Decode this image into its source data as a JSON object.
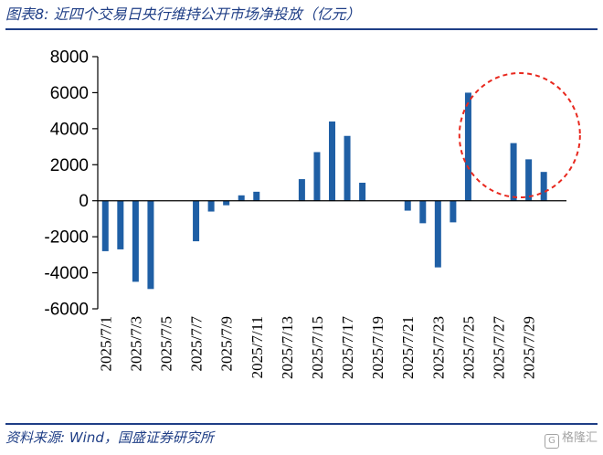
{
  "header": {
    "title": "图表8: 近四个交易日央行维持公开市场净投放（亿元）"
  },
  "footer": {
    "source": "资料来源: Wind，国盛证券研究所",
    "watermark": "格隆汇"
  },
  "colors": {
    "bar": "#1f5fa5",
    "axis": "#000000",
    "highlight": "#e8281e",
    "brand": "#1f3e86"
  },
  "chart_data": {
    "type": "bar",
    "title": "近四个交易日央行维持公开市场净投放（亿元）",
    "xlabel": "",
    "ylabel": "",
    "ylim": [
      -6000,
      8000
    ],
    "yticks": [
      -6000,
      -4000,
      -2000,
      0,
      2000,
      4000,
      6000,
      8000
    ],
    "ytick_labels": [
      "-6000",
      "-4000",
      "-2000",
      "0",
      "2000",
      "4000",
      "6000",
      "8000"
    ],
    "grid": false,
    "legend": "none",
    "categories": [
      "2025/7/1",
      "2025/7/2",
      "2025/7/3",
      "2025/7/4",
      "2025/7/5",
      "2025/7/6",
      "2025/7/7",
      "2025/7/8",
      "2025/7/9",
      "2025/7/10",
      "2025/7/11",
      "2025/7/12",
      "2025/7/13",
      "2025/7/14",
      "2025/7/15",
      "2025/7/16",
      "2025/7/17",
      "2025/7/18",
      "2025/7/19",
      "2025/7/20",
      "2025/7/21",
      "2025/7/22",
      "2025/7/23",
      "2025/7/24",
      "2025/7/25",
      "2025/7/26",
      "2025/7/27",
      "2025/7/28",
      "2025/7/29",
      "2025/7/30",
      "2025/7/31"
    ],
    "tick_labels_shown": [
      "2025/7/1",
      "",
      "2025/7/3",
      "",
      "2025/7/5",
      "",
      "2025/7/7",
      "",
      "2025/7/9",
      "",
      "2025/7/11",
      "",
      "2025/7/13",
      "",
      "2025/7/15",
      "",
      "2025/7/17",
      "",
      "2025/7/19",
      "",
      "2025/7/21",
      "",
      "2025/7/23",
      "",
      "2025/7/25",
      "",
      "2025/7/27",
      "",
      "2025/7/29",
      "",
      ""
    ],
    "values": [
      -2800,
      -2700,
      -4500,
      -4900,
      0,
      0,
      -2250,
      -600,
      -250,
      300,
      500,
      0,
      0,
      1200,
      2700,
      4400,
      3600,
      1000,
      0,
      0,
      -550,
      -1250,
      -3700,
      -1200,
      6000,
      0,
      0,
      3200,
      2300,
      1600,
      0
    ],
    "annotations": [
      {
        "type": "dashed-circle",
        "around": [
          "2025/7/25",
          "2025/7/30"
        ]
      }
    ]
  }
}
